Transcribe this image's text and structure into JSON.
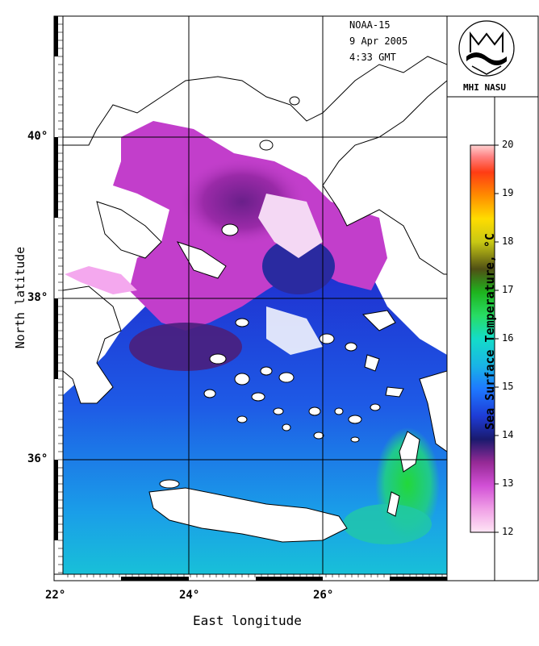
{
  "satellite": "NOAA-15",
  "date": "9 Apr 2005",
  "time": "4:33 GMT",
  "logo_caption": "MHI NASU",
  "x_axis": {
    "title": "East longitude",
    "ticks": [
      "22°",
      "24°",
      "26°"
    ]
  },
  "y_axis": {
    "title": "North latitude",
    "ticks": [
      "40°",
      "38°",
      "36°"
    ]
  },
  "colorbar": {
    "title": "Sea Surface Temperature, °C",
    "ticks": [
      "20",
      "19",
      "18",
      "17",
      "16",
      "15",
      "14",
      "13",
      "12"
    ],
    "min": 12,
    "max": 20,
    "colors": [
      "#ffe6f5",
      "#f0a0e6",
      "#d250d6",
      "#962a96",
      "#1a1a6e",
      "#1e3cd6",
      "#1e78ff",
      "#19b4e6",
      "#14dcc8",
      "#28dc64",
      "#1eb41e",
      "#505014",
      "#c8c814",
      "#ffdc00",
      "#ff8c00",
      "#ff3c14",
      "#ff8080",
      "#ffd2d2"
    ]
  }
}
